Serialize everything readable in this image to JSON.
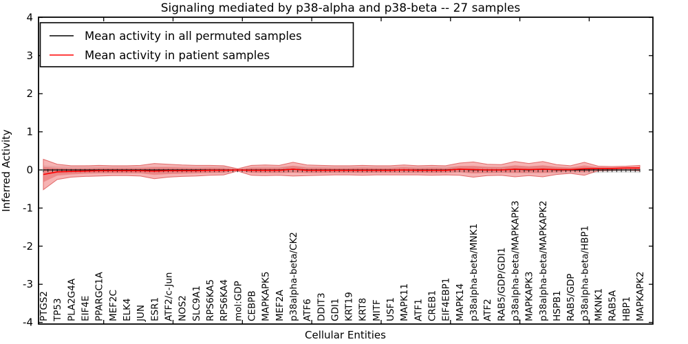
{
  "title": "Signaling mediated by p38-alpha and p38-beta -- 27 samples",
  "axes": {
    "xlabel": "Cellular Entities",
    "ylabel": "Inferred Activity"
  },
  "legend": {
    "entries": [
      {
        "label": "Mean activity in all permuted samples",
        "color": "#000000"
      },
      {
        "label": "Mean activity in patient samples",
        "color": "#ff0000"
      }
    ]
  },
  "colors": {
    "patient_line": "#ff0000",
    "permuted_line": "#000000",
    "patient_band_fill": "#f08080",
    "patient_band_edge": "#dd5555",
    "permuted_band_fill": "#bfbfbf",
    "frame": "#000000"
  },
  "chart_data": {
    "type": "line",
    "title": "Signaling mediated by p38-alpha and p38-beta -- 27 samples",
    "xlabel": "Cellular Entities",
    "ylabel": "Inferred Activity",
    "ylim": [
      -4,
      4
    ],
    "yticks": [
      4,
      3,
      2,
      1,
      0,
      -1,
      -2,
      -3,
      -4
    ],
    "grid": false,
    "legend_position": "upper left",
    "categories": [
      "PTGS2",
      "TP53",
      "PLA2G4A",
      "EIF4E",
      "PPARGC1A",
      "MEF2C",
      "ELK4",
      "JUN",
      "ESR1",
      "ATF2/c-Jun",
      "NOS2",
      "SLC9A1",
      "RPS6KA5",
      "RPS6KA4",
      "mol:GDP",
      "CEBPB",
      "MAPKAPK5",
      "MEF2A",
      "p38alpha-beta/CK2",
      "ATF6",
      "DDIT3",
      "GDI1",
      "KRT19",
      "KRT8",
      "MITF",
      "USF1",
      "MAPK11",
      "ATF1",
      "CREB1",
      "EIF4EBP1",
      "MAPK14",
      "p38alpha-beta/MNK1",
      "ATF2",
      "RAB5/GDP/GDI1",
      "p38alpha-beta/MAPKAPK3",
      "MAPKAPK3",
      "p38alpha-beta/MAPKAPK2",
      "HSPB1",
      "RAB5/GDP",
      "p38alpha-beta/HBP1",
      "MKNK1",
      "RAB5A",
      "HBP1",
      "MAPKAPK2"
    ],
    "series": [
      {
        "name": "Mean activity in all permuted samples",
        "color": "#000000",
        "values": [
          0,
          0,
          0,
          0,
          0,
          0,
          0,
          0,
          0,
          0,
          0,
          0,
          0,
          0,
          0,
          0,
          0,
          0,
          0.02,
          0,
          0,
          0,
          0,
          0,
          0,
          0,
          0,
          0,
          0,
          0,
          0.02,
          0,
          0,
          0,
          0.02,
          0,
          0.02,
          0,
          0,
          0,
          0,
          0,
          0,
          0
        ]
      },
      {
        "name": "Mean activity in patient samples",
        "color": "#ff0000",
        "values": [
          -0.12,
          -0.05,
          -0.04,
          -0.03,
          -0.02,
          -0.02,
          -0.02,
          -0.02,
          -0.03,
          -0.02,
          -0.02,
          -0.02,
          -0.01,
          -0.01,
          0,
          -0.01,
          -0.01,
          -0.01,
          0.02,
          -0.01,
          -0.01,
          -0.01,
          -0.01,
          -0.01,
          -0.01,
          -0.01,
          0,
          -0.01,
          -0.01,
          -0.01,
          0.02,
          0.01,
          0,
          0,
          0.02,
          0.01,
          0.02,
          0.01,
          0.01,
          0.03,
          0.04,
          0.04,
          0.05,
          0.05
        ]
      }
    ],
    "bands": [
      {
        "name": "permuted-confidence-band",
        "center_series": 0,
        "color": "#bfbfbf",
        "opacity": 0.55,
        "edge_color": "none",
        "half_widths": [
          0.12,
          0.1,
          0.09,
          0.09,
          0.09,
          0.09,
          0.09,
          0.09,
          0.09,
          0.09,
          0.09,
          0.09,
          0.09,
          0.09,
          0.02,
          0.08,
          0.09,
          0.09,
          0.09,
          0.09,
          0.09,
          0.09,
          0.09,
          0.09,
          0.09,
          0.09,
          0.09,
          0.09,
          0.09,
          0.09,
          0.09,
          0.09,
          0.09,
          0.09,
          0.1,
          0.1,
          0.1,
          0.09,
          0.08,
          0.08,
          0.08,
          0.07,
          0.07,
          0.08
        ]
      },
      {
        "name": "patient-confidence-band-outer",
        "center_series": 1,
        "color": "#f08080",
        "opacity": 0.6,
        "edge_color": "#dd5555",
        "half_widths": [
          0.4,
          0.2,
          0.15,
          0.14,
          0.14,
          0.13,
          0.13,
          0.14,
          0.2,
          0.17,
          0.15,
          0.14,
          0.13,
          0.12,
          0.03,
          0.13,
          0.14,
          0.13,
          0.18,
          0.14,
          0.13,
          0.12,
          0.12,
          0.13,
          0.12,
          0.12,
          0.13,
          0.12,
          0.13,
          0.12,
          0.16,
          0.2,
          0.15,
          0.14,
          0.2,
          0.16,
          0.2,
          0.13,
          0.1,
          0.17,
          0.06,
          0.05,
          0.05,
          0.07
        ]
      },
      {
        "name": "patient-confidence-band-inner",
        "center_series": 1,
        "color": "#e86868",
        "opacity": 0.55,
        "edge_color": "none",
        "half_widths": [
          0.2,
          0.1,
          0.08,
          0.07,
          0.07,
          0.07,
          0.07,
          0.07,
          0.1,
          0.09,
          0.08,
          0.07,
          0.07,
          0.06,
          0.015,
          0.07,
          0.07,
          0.07,
          0.09,
          0.07,
          0.07,
          0.06,
          0.06,
          0.07,
          0.06,
          0.06,
          0.07,
          0.06,
          0.07,
          0.06,
          0.08,
          0.1,
          0.08,
          0.07,
          0.1,
          0.08,
          0.1,
          0.07,
          0.05,
          0.09,
          0.03,
          0.025,
          0.025,
          0.035
        ]
      }
    ]
  }
}
